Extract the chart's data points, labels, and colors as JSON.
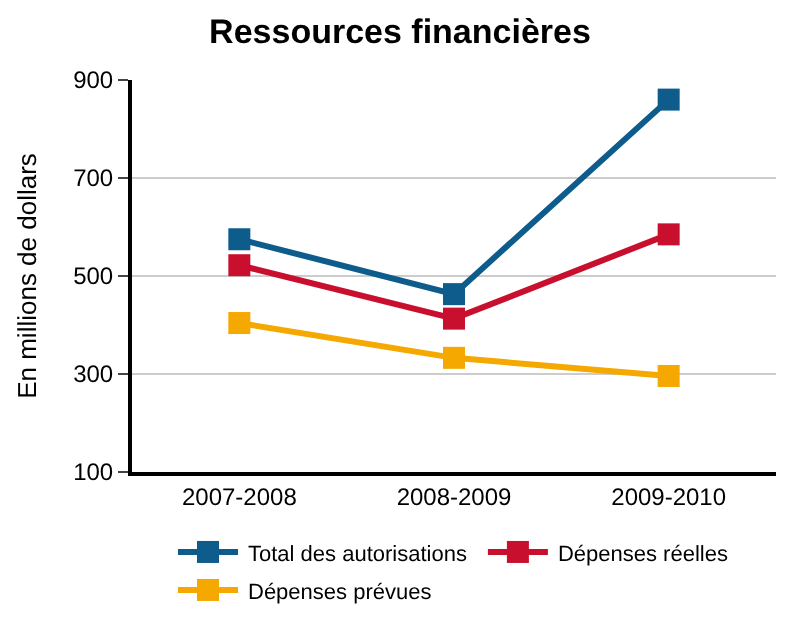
{
  "chart_data": {
    "type": "line",
    "title": "Ressources financières",
    "ylabel": "En millions de dollars",
    "categories": [
      "2007-2008",
      "2008-2009",
      "2009-2010"
    ],
    "series": [
      {
        "name": "Total des autorisations",
        "color": "#0d5c8c",
        "values": [
          575,
          463,
          860
        ]
      },
      {
        "name": "Dépenses réelles",
        "color": "#c8102e",
        "values": [
          522,
          413,
          585
        ]
      },
      {
        "name": "Dépenses prévues",
        "color": "#f5a800",
        "values": [
          404,
          333,
          296
        ]
      }
    ],
    "ylim": [
      100,
      900
    ],
    "yticks": [
      100,
      300,
      500,
      700,
      900
    ],
    "grid": "y",
    "legend": "bottom",
    "marker": "square",
    "line_style": "solid"
  }
}
